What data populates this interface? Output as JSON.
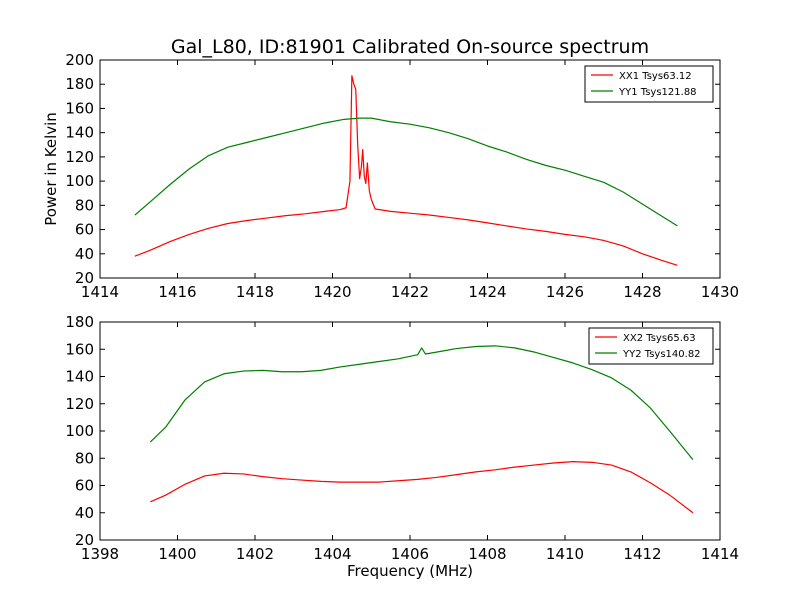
{
  "chart_data": [
    {
      "type": "line",
      "title": "Gal_L80, ID:81901 Calibrated On-source spectrum",
      "xlabel": "",
      "ylabel": "Power in Kelvin",
      "xlim": [
        1414,
        1430
      ],
      "ylim": [
        20,
        200
      ],
      "xticks": [
        1414,
        1416,
        1418,
        1420,
        1422,
        1424,
        1426,
        1428,
        1430
      ],
      "yticks": [
        20,
        40,
        60,
        80,
        100,
        120,
        140,
        160,
        180,
        200
      ],
      "legend_position": "top-right",
      "grid": false,
      "series": [
        {
          "name": "XX1 Tsys63.12",
          "color": "#ff0000",
          "points": [
            [
              1414.9,
              38
            ],
            [
              1415.3,
              43
            ],
            [
              1415.8,
              50
            ],
            [
              1416.3,
              56
            ],
            [
              1416.8,
              61
            ],
            [
              1417.3,
              65
            ],
            [
              1417.8,
              67.5
            ],
            [
              1418.3,
              69.5
            ],
            [
              1418.8,
              71.5
            ],
            [
              1419.3,
              73
            ],
            [
              1419.8,
              75
            ],
            [
              1420.2,
              76.5
            ],
            [
              1420.35,
              78
            ],
            [
              1420.45,
              100
            ],
            [
              1420.5,
              187
            ],
            [
              1420.55,
              180
            ],
            [
              1420.6,
              176
            ],
            [
              1420.65,
              130
            ],
            [
              1420.7,
              102
            ],
            [
              1420.75,
              113
            ],
            [
              1420.78,
              126
            ],
            [
              1420.82,
              104
            ],
            [
              1420.86,
              98
            ],
            [
              1420.9,
              115
            ],
            [
              1420.95,
              92
            ],
            [
              1421.0,
              85
            ],
            [
              1421.1,
              77
            ],
            [
              1421.5,
              75
            ],
            [
              1422.0,
              73.5
            ],
            [
              1422.5,
              72
            ],
            [
              1423.0,
              70
            ],
            [
              1423.5,
              68
            ],
            [
              1424.0,
              65.5
            ],
            [
              1424.5,
              63
            ],
            [
              1425.0,
              60.5
            ],
            [
              1425.5,
              58.5
            ],
            [
              1426.0,
              56
            ],
            [
              1426.5,
              54
            ],
            [
              1427.0,
              51
            ],
            [
              1427.5,
              46.5
            ],
            [
              1428.0,
              40
            ],
            [
              1428.5,
              34.5
            ],
            [
              1428.9,
              30.5
            ]
          ]
        },
        {
          "name": "YY1 Tsys121.88",
          "color": "#008000",
          "points": [
            [
              1414.9,
              72
            ],
            [
              1415.3,
              83
            ],
            [
              1415.8,
              97
            ],
            [
              1416.3,
              110
            ],
            [
              1416.8,
              121
            ],
            [
              1417.3,
              128
            ],
            [
              1417.8,
              132
            ],
            [
              1418.3,
              136
            ],
            [
              1418.8,
              140
            ],
            [
              1419.3,
              144
            ],
            [
              1419.8,
              148
            ],
            [
              1420.3,
              151
            ],
            [
              1420.7,
              152
            ],
            [
              1421.0,
              152
            ],
            [
              1421.5,
              149
            ],
            [
              1422.0,
              147
            ],
            [
              1422.5,
              144
            ],
            [
              1423.0,
              140
            ],
            [
              1423.5,
              135
            ],
            [
              1424.0,
              129
            ],
            [
              1424.5,
              124
            ],
            [
              1425.0,
              118
            ],
            [
              1425.5,
              113
            ],
            [
              1426.0,
              109
            ],
            [
              1426.5,
              104
            ],
            [
              1427.0,
              99
            ],
            [
              1427.5,
              91
            ],
            [
              1428.0,
              81
            ],
            [
              1428.5,
              71
            ],
            [
              1428.9,
              63
            ]
          ]
        }
      ]
    },
    {
      "type": "line",
      "title": "",
      "xlabel": "Frequency (MHz)",
      "ylabel": "",
      "xlim": [
        1398,
        1414
      ],
      "ylim": [
        20,
        180
      ],
      "xticks": [
        1398,
        1400,
        1402,
        1404,
        1406,
        1408,
        1410,
        1412,
        1414
      ],
      "yticks": [
        20,
        40,
        60,
        80,
        100,
        120,
        140,
        160,
        180
      ],
      "legend_position": "top-right",
      "grid": false,
      "series": [
        {
          "name": "XX2 Tsys65.63",
          "color": "#ff0000",
          "points": [
            [
              1399.3,
              48
            ],
            [
              1399.7,
              53
            ],
            [
              1400.2,
              61
            ],
            [
              1400.7,
              67
            ],
            [
              1401.2,
              69
            ],
            [
              1401.7,
              68.5
            ],
            [
              1402.2,
              66.5
            ],
            [
              1402.7,
              65
            ],
            [
              1403.2,
              64
            ],
            [
              1403.7,
              63
            ],
            [
              1404.2,
              62.5
            ],
            [
              1404.7,
              62.5
            ],
            [
              1405.2,
              62.5
            ],
            [
              1405.7,
              63.5
            ],
            [
              1406.2,
              64.5
            ],
            [
              1406.7,
              66
            ],
            [
              1407.2,
              68
            ],
            [
              1407.7,
              70
            ],
            [
              1408.2,
              71.5
            ],
            [
              1408.7,
              73.5
            ],
            [
              1409.2,
              75
            ],
            [
              1409.7,
              76.5
            ],
            [
              1410.2,
              77.5
            ],
            [
              1410.7,
              77
            ],
            [
              1411.2,
              75
            ],
            [
              1411.7,
              70
            ],
            [
              1412.2,
              62
            ],
            [
              1412.7,
              53
            ],
            [
              1413.3,
              40
            ]
          ]
        },
        {
          "name": "YY2 Tsys140.82",
          "color": "#008000",
          "points": [
            [
              1399.3,
              92
            ],
            [
              1399.7,
              103
            ],
            [
              1400.2,
              123
            ],
            [
              1400.7,
              136
            ],
            [
              1401.2,
              142
            ],
            [
              1401.7,
              144
            ],
            [
              1402.2,
              144.5
            ],
            [
              1402.7,
              143.5
            ],
            [
              1403.2,
              143.5
            ],
            [
              1403.7,
              144.5
            ],
            [
              1404.2,
              147
            ],
            [
              1404.7,
              149
            ],
            [
              1405.2,
              151
            ],
            [
              1405.7,
              153
            ],
            [
              1406.2,
              156
            ],
            [
              1406.3,
              161
            ],
            [
              1406.4,
              156.5
            ],
            [
              1406.7,
              158
            ],
            [
              1407.2,
              160.5
            ],
            [
              1407.7,
              162
            ],
            [
              1408.2,
              162.5
            ],
            [
              1408.7,
              161
            ],
            [
              1409.2,
              158
            ],
            [
              1409.7,
              154
            ],
            [
              1410.2,
              150
            ],
            [
              1410.7,
              145
            ],
            [
              1411.2,
              139
            ],
            [
              1411.7,
              130
            ],
            [
              1412.2,
              117
            ],
            [
              1412.7,
              100
            ],
            [
              1413.3,
              79
            ]
          ]
        }
      ]
    }
  ]
}
